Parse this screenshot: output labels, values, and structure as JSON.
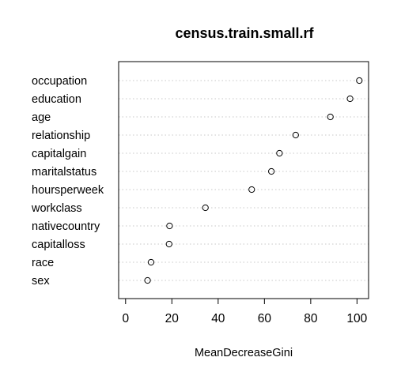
{
  "chart_data": {
    "type": "scatter",
    "title": "census.train.small.rf",
    "xlabel": "MeanDecreaseGini",
    "ylabel": "",
    "xlim": [
      -3,
      105
    ],
    "xticks": [
      0,
      20,
      40,
      60,
      80,
      100
    ],
    "xtick_labels": [
      "0",
      "20",
      "40",
      "60",
      "80",
      "100"
    ],
    "grid": "dotted horizontal lines per variable",
    "categories": [
      "occupation",
      "education",
      "age",
      "relationship",
      "capitalgain",
      "maritalstatus",
      "hoursperweek",
      "workclass",
      "nativecountry",
      "capitalloss",
      "race",
      "sex"
    ],
    "values": [
      101,
      97,
      88.5,
      73.5,
      66.5,
      63,
      54.5,
      34.5,
      19,
      18.8,
      11,
      9.5
    ]
  }
}
